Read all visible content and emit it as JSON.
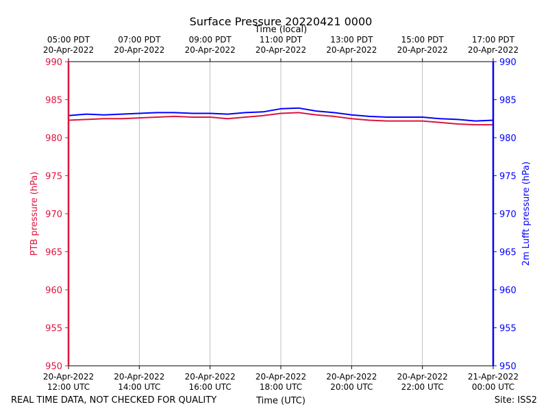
{
  "chart_data": {
    "type": "line",
    "title": "Surface Pressure 20220421 0000",
    "top_axis_label": "Time (local)",
    "xlabel": "Time (UTC)",
    "ylabel_left": "PTB pressure (hPa)",
    "ylabel_right": "2m Lufft pressure (hPa)",
    "ylim": [
      950,
      990
    ],
    "xlim_hours_utc": [
      12,
      24
    ],
    "yticks": [
      950,
      955,
      960,
      965,
      970,
      975,
      980,
      985,
      990
    ],
    "x_ticks_bottom": [
      {
        "hour": 12,
        "date": "20-Apr-2022",
        "time": "12:00 UTC"
      },
      {
        "hour": 14,
        "date": "20-Apr-2022",
        "time": "14:00 UTC"
      },
      {
        "hour": 16,
        "date": "20-Apr-2022",
        "time": "16:00 UTC"
      },
      {
        "hour": 18,
        "date": "20-Apr-2022",
        "time": "18:00 UTC"
      },
      {
        "hour": 20,
        "date": "20-Apr-2022",
        "time": "20:00 UTC"
      },
      {
        "hour": 22,
        "date": "20-Apr-2022",
        "time": "22:00 UTC"
      },
      {
        "hour": 24,
        "date": "21-Apr-2022",
        "time": "00:00 UTC"
      }
    ],
    "x_ticks_top": [
      {
        "hour": 12,
        "time": "05:00 PDT",
        "date": "20-Apr-2022"
      },
      {
        "hour": 14,
        "time": "07:00 PDT",
        "date": "20-Apr-2022"
      },
      {
        "hour": 16,
        "time": "09:00 PDT",
        "date": "20-Apr-2022"
      },
      {
        "hour": 18,
        "time": "11:00 PDT",
        "date": "20-Apr-2022"
      },
      {
        "hour": 20,
        "time": "13:00 PDT",
        "date": "20-Apr-2022"
      },
      {
        "hour": 22,
        "time": "15:00 PDT",
        "date": "20-Apr-2022"
      },
      {
        "hour": 24,
        "time": "17:00 PDT",
        "date": "20-Apr-2022"
      }
    ],
    "grid": "vertical",
    "series": [
      {
        "color": "#dc143c",
        "hours_utc": [
          12,
          12.5,
          13,
          13.5,
          14,
          14.5,
          15,
          15.5,
          16,
          16.5,
          17,
          17.5,
          18,
          18.5,
          19,
          19.5,
          20,
          20.5,
          21,
          21.5,
          22,
          22.5,
          23,
          23.5,
          24
        ],
        "values": [
          982.3,
          982.4,
          982.5,
          982.5,
          982.6,
          982.7,
          982.8,
          982.7,
          982.7,
          982.5,
          982.7,
          982.9,
          983.2,
          983.3,
          983.0,
          982.8,
          982.5,
          982.3,
          982.2,
          982.2,
          982.2,
          982.0,
          981.8,
          981.7,
          981.7
        ]
      },
      {
        "color": "#0000ff",
        "hours_utc": [
          12,
          12.5,
          13,
          13.5,
          14,
          14.5,
          15,
          15.5,
          16,
          16.5,
          17,
          17.5,
          18,
          18.5,
          19,
          19.5,
          20,
          20.5,
          21,
          21.5,
          22,
          22.5,
          23,
          23.5,
          24
        ],
        "values": [
          982.9,
          983.1,
          983.0,
          983.1,
          983.2,
          983.3,
          983.3,
          983.2,
          983.2,
          983.1,
          983.3,
          983.4,
          983.8,
          983.9,
          983.5,
          983.3,
          983.0,
          982.8,
          982.7,
          982.7,
          982.7,
          982.5,
          982.4,
          982.2,
          982.3
        ]
      }
    ]
  },
  "footer": {
    "left_note": "REAL TIME DATA, NOT CHECKED FOR QUALITY",
    "right_note": "Site: ISS2"
  },
  "colors": {
    "left_axis": "#dc143c",
    "right_axis": "#0000ff",
    "grid": "#b0b0b0"
  }
}
